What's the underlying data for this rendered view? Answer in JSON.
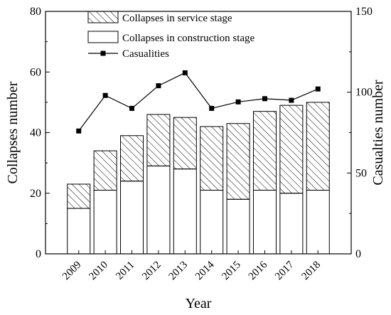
{
  "chart_data": {
    "type": "bar",
    "stacked": true,
    "categories": [
      "2009",
      "2010",
      "2011",
      "2012",
      "2013",
      "2014",
      "2015",
      "2016",
      "2017",
      "2018"
    ],
    "series": [
      {
        "name": "Collapses in construction stage",
        "axis": "left",
        "kind": "bar",
        "pattern": "none",
        "values": [
          15,
          21,
          24,
          29,
          28,
          21,
          18,
          21,
          20,
          21
        ]
      },
      {
        "name": "Collapses in service stage",
        "axis": "left",
        "kind": "bar",
        "pattern": "hatched",
        "values": [
          8,
          13,
          15,
          17,
          17,
          21,
          25,
          26,
          29,
          29
        ]
      },
      {
        "name": "Casualities",
        "axis": "right",
        "kind": "line",
        "marker": "square",
        "values": [
          76,
          98,
          90,
          104,
          112,
          90,
          94,
          96,
          95,
          102
        ]
      }
    ],
    "legend": [
      "Collapses in service stage",
      "Collapses in construction stage",
      "Casualities"
    ],
    "legend_position": "top-center",
    "xlabel": "Year",
    "ylabel": "Collapses number",
    "y2label": "Casualties number",
    "ylim": [
      0,
      80
    ],
    "y2lim": [
      0,
      150
    ],
    "yticks": [
      0,
      20,
      40,
      60,
      80
    ],
    "y2ticks": [
      0,
      50,
      100,
      150
    ],
    "grid": false
  }
}
